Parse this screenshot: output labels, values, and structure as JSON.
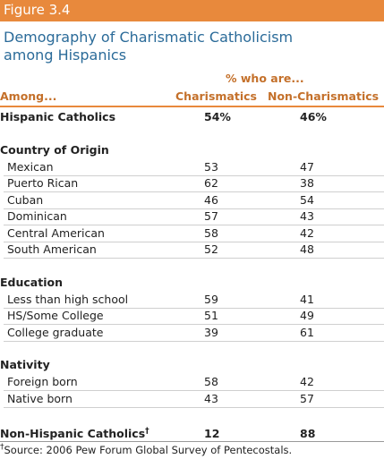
{
  "figure_label": "Figure 3.4",
  "title_lines": [
    "Demography of Charismatic Catholicism",
    "among Hispanics"
  ],
  "column_group": "% who are...",
  "columns": [
    "Among...",
    "Charismatics",
    "Non-Charismatics"
  ],
  "total_row": {
    "label": "Hispanic Catholics",
    "values": [
      "54%",
      "46%"
    ]
  },
  "sections": [
    {
      "heading": "Country of Origin",
      "rows": [
        {
          "label": "Mexican",
          "values": [
            "53",
            "47"
          ]
        },
        {
          "label": "Puerto Rican",
          "values": [
            "62",
            "38"
          ]
        },
        {
          "label": "Cuban",
          "values": [
            "46",
            "54"
          ]
        },
        {
          "label": "Dominican",
          "values": [
            "57",
            "43"
          ]
        },
        {
          "label": "Central American",
          "values": [
            "58",
            "42"
          ]
        },
        {
          "label": "South American",
          "values": [
            "52",
            "48"
          ]
        }
      ]
    },
    {
      "heading": "Education",
      "rows": [
        {
          "label": "Less than high school",
          "values": [
            "59",
            "41"
          ]
        },
        {
          "label": "HS/Some College",
          "values": [
            "51",
            "49"
          ]
        },
        {
          "label": "College graduate",
          "values": [
            "39",
            "61"
          ]
        }
      ]
    },
    {
      "heading": "Nativity",
      "rows": [
        {
          "label": "Foreign born",
          "values": [
            "58",
            "42"
          ]
        },
        {
          "label": "Native born",
          "values": [
            "43",
            "57"
          ]
        }
      ]
    }
  ],
  "footer_row": {
    "label": "Non-Hispanic Catholics",
    "marker": "†",
    "values": [
      "12",
      "88"
    ]
  },
  "source": {
    "marker": "†",
    "text": "Source: 2006 Pew Forum Global Survey of Pentecostals."
  }
}
